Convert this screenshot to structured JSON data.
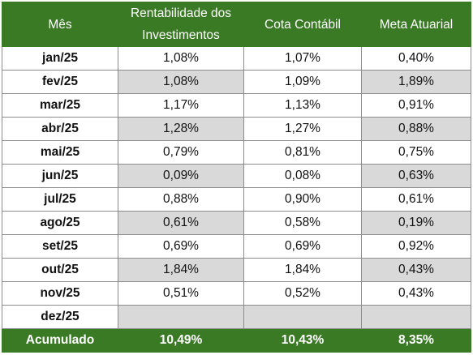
{
  "colors": {
    "header_bg": "#3a7a25",
    "header_text": "#ffffff",
    "shade": "#d9d9d9",
    "border": "#8c8c8c"
  },
  "headers": [
    "Mês",
    "Rentabilidade dos Investimentos",
    "Cota Contábil",
    "Meta Atuarial"
  ],
  "rows": [
    {
      "month": "jan/25",
      "rent": "1,08%",
      "cota": "1,07%",
      "meta": "0,40%"
    },
    {
      "month": "fev/25",
      "rent": "1,08%",
      "cota": "1,09%",
      "meta": "1,89%"
    },
    {
      "month": "mar/25",
      "rent": "1,17%",
      "cota": "1,13%",
      "meta": "0,91%"
    },
    {
      "month": "abr/25",
      "rent": "1,28%",
      "cota": "1,27%",
      "meta": "0,88%"
    },
    {
      "month": "mai/25",
      "rent": "0,79%",
      "cota": "0,81%",
      "meta": "0,75%"
    },
    {
      "month": "jun/25",
      "rent": "0,09%",
      "cota": "0,08%",
      "meta": "0,63%"
    },
    {
      "month": "jul/25",
      "rent": "0,88%",
      "cota": "0,90%",
      "meta": "0,61%"
    },
    {
      "month": "ago/25",
      "rent": "0,61%",
      "cota": "0,58%",
      "meta": "0,19%"
    },
    {
      "month": "set/25",
      "rent": "0,69%",
      "cota": "0,69%",
      "meta": "0,92%"
    },
    {
      "month": "out/25",
      "rent": "1,84%",
      "cota": "1,84%",
      "meta": "0,43%"
    },
    {
      "month": "nov/25",
      "rent": "0,51%",
      "cota": "0,52%",
      "meta": "0,43%"
    },
    {
      "month": "dez/25",
      "rent": "",
      "cota": "",
      "meta": ""
    }
  ],
  "footer": {
    "label": "Acumulado",
    "rent": "10,49%",
    "cota": "10,43%",
    "meta": "8,35%"
  }
}
